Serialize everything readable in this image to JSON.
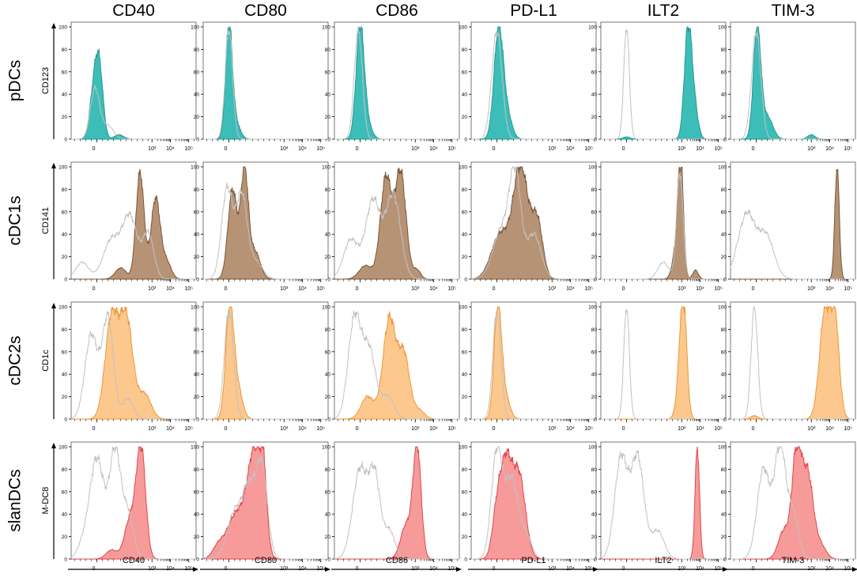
{
  "chart_data": {
    "type": "histogram_grid",
    "columns": [
      "CD40",
      "CD80",
      "CD86",
      "PD-L1",
      "ILT2",
      "TIM-3"
    ],
    "rows": [
      {
        "label": "pDCs",
        "ylabel": "CD123",
        "color": "#3dbdb8",
        "edge": "#229a95"
      },
      {
        "label": "cDC1s",
        "ylabel": "CD141",
        "color": "#b79375",
        "edge": "#7a5535"
      },
      {
        "label": "cDC2s",
        "ylabel": "CD1c",
        "color": "#fcc88e",
        "edge": "#ef9535"
      },
      {
        "label": "slanDCs",
        "ylabel": "M-DC8",
        "color": "#f79a9a",
        "edge": "#e0474d"
      }
    ],
    "x_axis_labels": [
      "CD40",
      "CD80",
      "CD86",
      "PD-L1",
      "ILT2",
      "TIM-3"
    ],
    "x_ticks": [
      {
        "value": 0,
        "label": "0"
      },
      {
        "value": 3,
        "label": "10³"
      },
      {
        "value": 4,
        "label": "10⁴"
      },
      {
        "value": 5,
        "label": "10⁵"
      }
    ],
    "y_ticks": [
      0,
      20,
      40,
      60,
      80,
      100
    ],
    "ylim": [
      0,
      100
    ],
    "xlim": [
      -1.4,
      5.4
    ],
    "control_color": "#c2c2c2",
    "histograms": [
      [
        {
          "stained": [
            [
              -0.15,
              45,
              0.22
            ],
            [
              0.15,
              55,
              0.2
            ],
            [
              1.2,
              4,
              0.25
            ]
          ],
          "control": [
            [
              -0.1,
              45,
              0.25
            ],
            [
              0.6,
              12,
              0.3
            ]
          ]
        },
        {
          "stained": [
            [
              0.0,
              100,
              0.18
            ],
            [
              0.35,
              15,
              0.25
            ]
          ],
          "control": [
            [
              0.0,
              98,
              0.2
            ]
          ]
        },
        {
          "stained": [
            [
              0.0,
              100,
              0.22
            ],
            [
              0.4,
              12,
              0.25
            ]
          ],
          "control": [
            [
              -0.1,
              98,
              0.22
            ]
          ]
        },
        {
          "stained": [
            [
              0.1,
              100,
              0.25
            ],
            [
              0.6,
              18,
              0.25
            ]
          ],
          "control": [
            [
              0.0,
              96,
              0.28
            ]
          ]
        },
        {
          "stained": [
            [
              3.35,
              100,
              0.2
            ],
            [
              3.7,
              25,
              0.2
            ],
            [
              0.0,
              2,
              0.2
            ]
          ],
          "control": [
            [
              0.0,
              100,
              0.15
            ]
          ]
        },
        {
          "stained": [
            [
              0.05,
              100,
              0.2
            ],
            [
              0.6,
              20,
              0.3
            ],
            [
              3.0,
              4,
              0.2
            ]
          ],
          "control": [
            [
              0.0,
              96,
              0.25
            ]
          ]
        }
      ],
      [
        {
          "stained": [
            [
              2.35,
              95,
              0.22
            ],
            [
              3.2,
              72,
              0.25
            ],
            [
              1.3,
              10,
              0.3
            ],
            [
              3.8,
              15,
              0.25
            ]
          ],
          "control": [
            [
              -0.8,
              15,
              0.35
            ],
            [
              0.8,
              35,
              0.45
            ],
            [
              1.8,
              55,
              0.4
            ],
            [
              2.8,
              40,
              0.3
            ]
          ]
        },
        {
          "stained": [
            [
              0.2,
              80,
              0.25
            ],
            [
              0.85,
              95,
              0.2
            ],
            [
              1.4,
              25,
              0.3
            ]
          ],
          "control": [
            [
              -0.1,
              80,
              0.3
            ],
            [
              0.7,
              75,
              0.3
            ],
            [
              1.5,
              15,
              0.35
            ]
          ]
        },
        {
          "stained": [
            [
              1.4,
              90,
              0.3
            ],
            [
              2.2,
              95,
              0.3
            ],
            [
              0.3,
              12,
              0.35
            ],
            [
              3.1,
              8,
              0.2
            ]
          ],
          "control": [
            [
              -0.5,
              35,
              0.4
            ],
            [
              0.7,
              70,
              0.4
            ],
            [
              1.8,
              75,
              0.4
            ]
          ]
        },
        {
          "stained": [
            [
              0.2,
              40,
              0.5
            ],
            [
              1.3,
              100,
              0.4
            ],
            [
              2.2,
              50,
              0.3
            ]
          ],
          "control": [
            [
              0.3,
              45,
              0.5
            ],
            [
              1.0,
              85,
              0.3
            ],
            [
              2.0,
              40,
              0.4
            ]
          ]
        },
        {
          "stained": [
            [
              2.95,
              98,
              0.15
            ],
            [
              2.7,
              25,
              0.2
            ],
            [
              3.75,
              8,
              0.15
            ]
          ],
          "control": [
            [
              2.9,
              95,
              0.18
            ],
            [
              2.0,
              15,
              0.3
            ]
          ]
        },
        {
          "stained": [
            [
              4.4,
              100,
              0.12
            ]
          ],
          "control": [
            [
              -0.5,
              55,
              0.4
            ],
            [
              0.5,
              40,
              0.45
            ],
            [
              -1.1,
              10,
              0.3
            ]
          ]
        }
      ],
      [
        {
          "stained": [
            [
              0.8,
              90,
              0.35
            ],
            [
              1.6,
              90,
              0.35
            ],
            [
              2.6,
              22,
              0.35
            ]
          ],
          "control": [
            [
              -0.3,
              75,
              0.35
            ],
            [
              0.6,
              90,
              0.3
            ],
            [
              1.7,
              18,
              0.3
            ]
          ]
        },
        {
          "stained": [
            [
              0.05,
              100,
              0.22
            ],
            [
              0.5,
              25,
              0.25
            ]
          ],
          "control": [
            [
              0.0,
              96,
              0.25
            ]
          ]
        },
        {
          "stained": [
            [
              1.6,
              90,
              0.35
            ],
            [
              2.4,
              55,
              0.3
            ],
            [
              0.4,
              20,
              0.35
            ],
            [
              3.2,
              8,
              0.3
            ]
          ],
          "control": [
            [
              -0.3,
              90,
              0.35
            ],
            [
              0.5,
              60,
              0.35
            ],
            [
              1.5,
              20,
              0.35
            ]
          ]
        },
        {
          "stained": [
            [
              0.05,
              100,
              0.2
            ],
            [
              0.45,
              20,
              0.25
            ]
          ],
          "control": [
            [
              0.0,
              96,
              0.22
            ]
          ]
        },
        {
          "stained": [
            [
              3.1,
              98,
              0.18
            ],
            [
              2.9,
              25,
              0.2
            ]
          ],
          "control": [
            [
              0.0,
              100,
              0.15
            ]
          ]
        },
        {
          "stained": [
            [
              3.75,
              95,
              0.3
            ],
            [
              4.25,
              90,
              0.25
            ],
            [
              -0.1,
              3,
              0.2
            ]
          ],
          "control": [
            [
              -0.1,
              100,
              0.18
            ]
          ]
        }
      ],
      [
        {
          "stained": [
            [
              2.4,
              100,
              0.25
            ],
            [
              1.8,
              35,
              0.3
            ],
            [
              0.8,
              8,
              0.3
            ]
          ],
          "control": [
            [
              0.0,
              90,
              0.4
            ],
            [
              1.0,
              95,
              0.3
            ],
            [
              1.7,
              40,
              0.3
            ],
            [
              -0.8,
              10,
              0.3
            ]
          ]
        },
        {
          "stained": [
            [
              0.4,
              40,
              0.5
            ],
            [
              1.3,
              75,
              0.35
            ],
            [
              1.75,
              100,
              0.25
            ],
            [
              -0.6,
              10,
              0.3
            ]
          ],
          "control": [
            [
              0.3,
              40,
              0.4
            ],
            [
              1.1,
              60,
              0.35
            ],
            [
              1.8,
              80,
              0.3
            ]
          ]
        },
        {
          "stained": [
            [
              3.1,
              100,
              0.22
            ],
            [
              2.5,
              30,
              0.3
            ]
          ],
          "control": [
            [
              0.0,
              80,
              0.4
            ],
            [
              0.8,
              70,
              0.3
            ],
            [
              1.6,
              25,
              0.3
            ]
          ]
        },
        {
          "stained": [
            [
              0.5,
              80,
              0.3
            ],
            [
              1.2,
              75,
              0.35
            ],
            [
              0.0,
              40,
              0.25
            ]
          ],
          "control": [
            [
              0.0,
              95,
              0.3
            ],
            [
              0.8,
              70,
              0.35
            ],
            [
              1.6,
              20,
              0.3
            ]
          ]
        },
        {
          "stained": [
            [
              3.85,
              100,
              0.12
            ]
          ],
          "control": [
            [
              -0.3,
              90,
              0.35
            ],
            [
              0.6,
              90,
              0.35
            ],
            [
              1.7,
              25,
              0.35
            ]
          ]
        },
        {
          "stained": [
            [
              2.2,
              95,
              0.25
            ],
            [
              2.8,
              75,
              0.3
            ],
            [
              1.5,
              25,
              0.3
            ],
            [
              3.5,
              12,
              0.3
            ]
          ],
          "control": [
            [
              0.4,
              80,
              0.35
            ],
            [
              1.3,
              100,
              0.3
            ],
            [
              2.0,
              40,
              0.3
            ]
          ]
        }
      ]
    ]
  }
}
